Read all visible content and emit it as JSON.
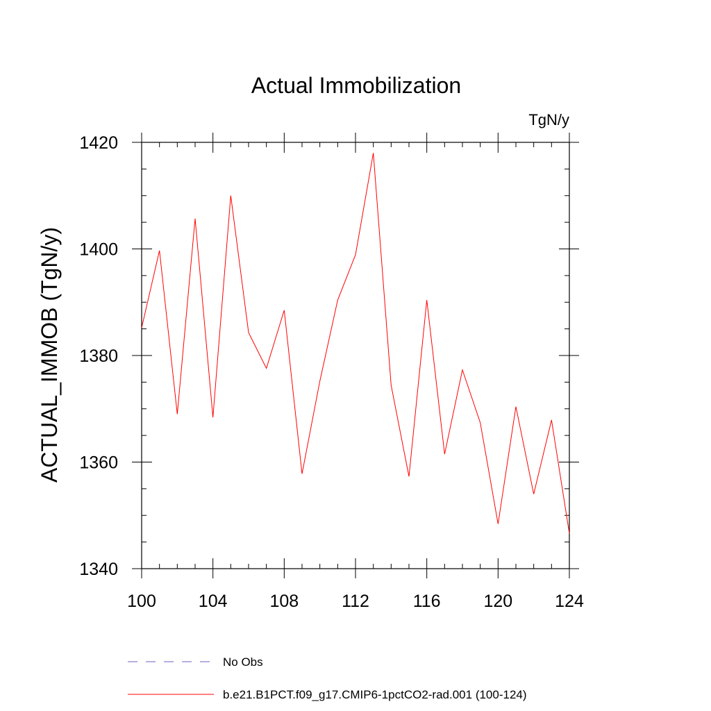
{
  "chart_data": {
    "type": "line",
    "title": "Actual Immobilization",
    "units": "TgN/y",
    "ylabel": "ACTUAL_IMMOB  (TgN/y)",
    "xlabel": "",
    "xlim": [
      100,
      124
    ],
    "ylim": [
      1340,
      1420
    ],
    "x_ticks": [
      100,
      104,
      108,
      112,
      116,
      120,
      124
    ],
    "y_ticks": [
      1340,
      1360,
      1380,
      1400,
      1420
    ],
    "x": [
      100,
      101,
      102,
      103,
      104,
      105,
      106,
      107,
      108,
      109,
      110,
      111,
      112,
      113,
      114,
      115,
      116,
      117,
      118,
      119,
      120,
      121,
      122,
      123,
      124
    ],
    "series": [
      {
        "name": "b.e21.B1PCT.f09_g17.CMIP6-1pctCO2-rad.001 (100-124)",
        "color": "#ff0000",
        "style": "solid",
        "values": [
          1385.2,
          1399.7,
          1369.0,
          1405.7,
          1368.4,
          1410.0,
          1384.3,
          1377.6,
          1388.5,
          1357.8,
          1375.2,
          1390.4,
          1398.9,
          1418.0,
          1374.4,
          1357.3,
          1390.4,
          1361.5,
          1377.3,
          1367.4,
          1348.4,
          1370.4,
          1354.0,
          1367.9,
          1346.6
        ]
      }
    ],
    "legend": {
      "placement": "bottom",
      "entries": [
        {
          "label": "No Obs",
          "color": "#6b5fbf",
          "style": "dashed"
        },
        {
          "label": "b.e21.B1PCT.f09_g17.CMIP6-1pctCO2-rad.001 (100-124)",
          "color": "#ff0000",
          "style": "solid"
        }
      ]
    },
    "grid": false
  }
}
